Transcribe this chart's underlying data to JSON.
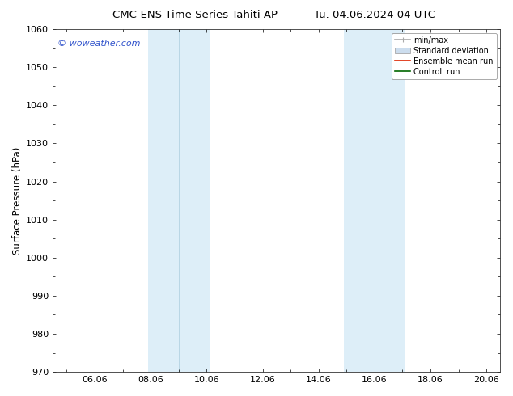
{
  "title_left": "CMC-ENS Time Series Tahiti AP",
  "title_right": "Tu. 04.06.2024 04 UTC",
  "ylabel": "Surface Pressure (hPa)",
  "watermark": "© woweather.com",
  "watermark_color": "#3355cc",
  "xlim_left": 4.5,
  "xlim_right": 20.5,
  "ylim_bottom": 970,
  "ylim_top": 1060,
  "yticks": [
    970,
    980,
    990,
    1000,
    1010,
    1020,
    1030,
    1040,
    1050,
    1060
  ],
  "xtick_labels": [
    "06.06",
    "08.06",
    "10.06",
    "12.06",
    "14.06",
    "16.06",
    "18.06",
    "20.06"
  ],
  "xtick_positions": [
    6,
    8,
    10,
    12,
    14,
    16,
    18,
    20
  ],
  "shaded_bands": [
    {
      "x_start": 7.9,
      "x_end": 9.0,
      "color": "#ddeef8"
    },
    {
      "x_start": 9.0,
      "x_end": 10.1,
      "color": "#ddeef8"
    },
    {
      "x_start": 14.9,
      "x_end": 16.0,
      "color": "#ddeef8"
    },
    {
      "x_start": 16.0,
      "x_end": 17.1,
      "color": "#ddeef8"
    }
  ],
  "background_color": "#ffffff",
  "legend_entries": [
    {
      "label": "min/max",
      "color": "#aaaaaa",
      "lw": 1.2,
      "style": "minmax"
    },
    {
      "label": "Standard deviation",
      "color": "#ccddee",
      "lw": 6,
      "style": "stddev"
    },
    {
      "label": "Ensemble mean run",
      "color": "#dd2200",
      "lw": 1.2,
      "style": "line"
    },
    {
      "label": "Controll run",
      "color": "#006600",
      "lw": 1.2,
      "style": "line"
    }
  ],
  "tick_font_size": 8,
  "title_font_size": 9.5,
  "ylabel_font_size": 8.5,
  "watermark_font_size": 8
}
